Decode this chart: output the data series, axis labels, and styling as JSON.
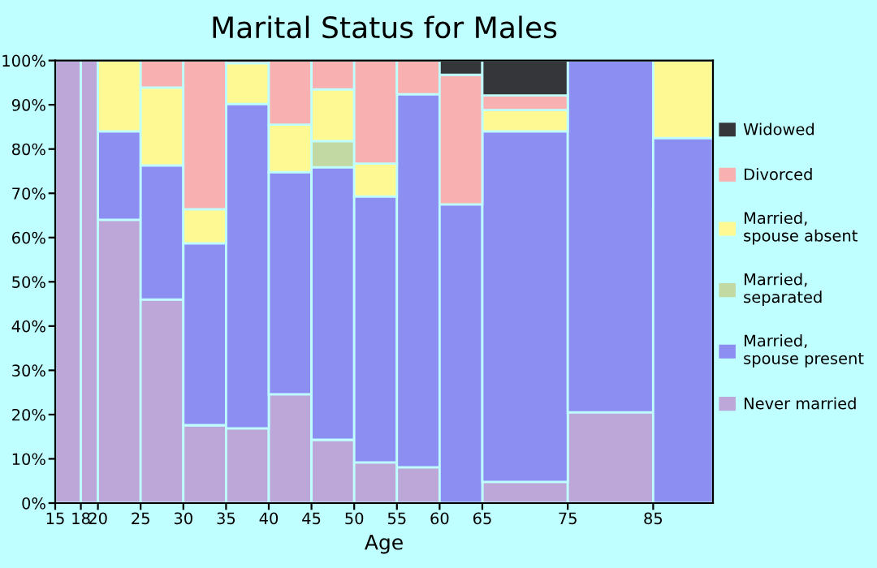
{
  "chart_data": {
    "type": "bar",
    "title": "Marital Status for Males",
    "xlabel": "Age",
    "x": [
      16.5,
      19,
      22.5,
      27.5,
      32.5,
      37.5,
      42.5,
      47.5,
      52.5,
      57.5,
      62.5,
      70,
      80,
      88.5
    ],
    "stacked": true,
    "series": [
      {
        "name": "Never married",
        "color": "#bda7d8",
        "values": [
          100,
          100,
          64,
          46,
          17.6,
          16.9,
          24.6,
          14.3,
          9.2,
          8.1,
          0,
          4.8,
          20.5,
          0
        ]
      },
      {
        "name": "Married, spouse present",
        "color": "#8d8ef2",
        "values": [
          0,
          0,
          20,
          30.3,
          41.1,
          73.3,
          50.2,
          61.6,
          60.1,
          84.3,
          67.5,
          79.2,
          79.5,
          82.5
        ]
      },
      {
        "name": "Married, separated",
        "color": "#c3d9a3",
        "values": [
          0,
          0,
          0,
          0,
          0,
          0,
          0,
          5.9,
          0,
          0,
          0,
          0,
          0,
          0
        ]
      },
      {
        "name": "Married, spouse absent",
        "color": "#fff993",
        "values": [
          0,
          0,
          16,
          17.6,
          7.7,
          9.2,
          10.7,
          11.7,
          7.4,
          0,
          0,
          4.8,
          0,
          17.5
        ]
      },
      {
        "name": "Divorced",
        "color": "#f8b0b0",
        "values": [
          0,
          0,
          0,
          6.1,
          33.6,
          0.6,
          14.5,
          6.5,
          23.3,
          7.6,
          29.3,
          3.3,
          0,
          0
        ]
      },
      {
        "name": "Widowed",
        "color": "#35363a",
        "values": [
          0,
          0,
          0,
          0,
          0,
          0,
          0,
          0,
          0,
          0,
          3.2,
          7.9,
          0,
          0
        ]
      }
    ],
    "xlim": [
      15,
      92
    ],
    "xticks": [
      15,
      18,
      20,
      25,
      30,
      35,
      40,
      45,
      50,
      55,
      60,
      65,
      75,
      85
    ],
    "ylim": [
      0,
      100
    ],
    "yticks": [
      {
        "value": 0,
        "label": "0%"
      },
      {
        "value": 10,
        "label": "10%"
      },
      {
        "value": 20,
        "label": "20%"
      },
      {
        "value": 30,
        "label": "30%"
      },
      {
        "value": 40,
        "label": "40%"
      },
      {
        "value": 50,
        "label": "50%"
      },
      {
        "value": 60,
        "label": "60%"
      },
      {
        "value": 70,
        "label": "70%"
      },
      {
        "value": 80,
        "label": "80%"
      },
      {
        "value": 90,
        "label": "90%"
      },
      {
        "value": 100,
        "label": "100%"
      }
    ],
    "grid": false,
    "legend": "right"
  }
}
